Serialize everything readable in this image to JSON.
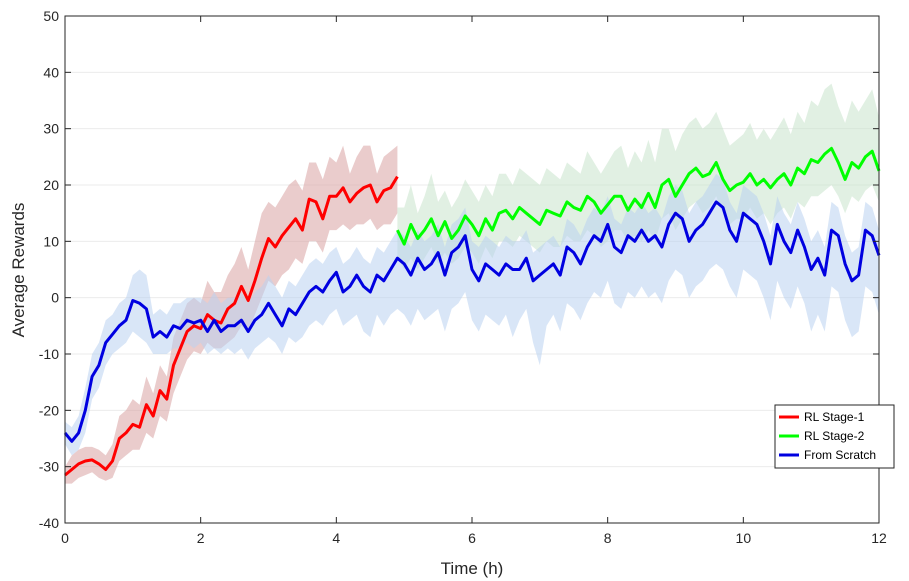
{
  "chart_data": {
    "type": "line",
    "xlabel": "Time (h)",
    "ylabel": "Average Rewards",
    "xlim": [
      0,
      12
    ],
    "ylim": [
      -40,
      50
    ],
    "x_ticks": [
      0,
      2,
      4,
      6,
      8,
      10,
      12
    ],
    "y_ticks": [
      -40,
      -30,
      -20,
      -10,
      0,
      10,
      20,
      30,
      40,
      50
    ],
    "grid": "horizontal",
    "legend_position": "bottom-right",
    "series": [
      {
        "name": "RL Stage-1",
        "color": "#ff0000",
        "band_color": "#d9a3a3",
        "x": [
          0,
          0.1,
          0.2,
          0.3,
          0.4,
          0.5,
          0.6,
          0.7,
          0.8,
          0.9,
          1.0,
          1.1,
          1.2,
          1.3,
          1.4,
          1.5,
          1.6,
          1.7,
          1.8,
          1.9,
          2.0,
          2.1,
          2.2,
          2.3,
          2.4,
          2.5,
          2.6,
          2.7,
          2.8,
          2.9,
          3.0,
          3.1,
          3.2,
          3.3,
          3.4,
          3.5,
          3.6,
          3.7,
          3.8,
          3.9,
          4.0,
          4.1,
          4.2,
          4.3,
          4.4,
          4.5,
          4.6,
          4.7,
          4.8,
          4.9
        ],
        "values": [
          -31.5,
          -30.5,
          -29.5,
          -29,
          -28.8,
          -29.5,
          -30.5,
          -29,
          -25,
          -24,
          -22.5,
          -23,
          -19,
          -21,
          -16.5,
          -18,
          -12,
          -9,
          -6,
          -5,
          -5.5,
          -3,
          -4,
          -4.5,
          -2,
          -1,
          2,
          -0.5,
          3,
          7,
          10.5,
          9,
          11,
          12.5,
          14,
          12,
          17.5,
          17,
          14,
          18,
          18,
          19.5,
          17,
          18.5,
          19.5,
          20,
          17,
          19,
          19.5,
          21.5
        ],
        "lower": [
          -33,
          -33,
          -32,
          -31.5,
          -31,
          -32,
          -32.5,
          -32,
          -29,
          -28,
          -27,
          -27,
          -24,
          -25,
          -21,
          -22,
          -17,
          -14,
          -11,
          -9.5,
          -10,
          -8,
          -9,
          -9,
          -8,
          -7,
          -5,
          -6,
          -3,
          0,
          3,
          2,
          4,
          5,
          7,
          6,
          10,
          10,
          8,
          12,
          12,
          13,
          12,
          13,
          13,
          14,
          12,
          13,
          13,
          15
        ],
        "upper": [
          -30,
          -28,
          -27,
          -26.5,
          -26.5,
          -27,
          -28,
          -26,
          -21,
          -20,
          -18,
          -19,
          -14,
          -17,
          -12,
          -14,
          -7,
          -4,
          -1,
          0,
          -1,
          3,
          1,
          1,
          4,
          6,
          9,
          5,
          10,
          15,
          17,
          16,
          18,
          20,
          21,
          19,
          24,
          24,
          21,
          25,
          24,
          27,
          22,
          25,
          27,
          27,
          22,
          25,
          26,
          27
        ]
      },
      {
        "name": "RL Stage-2",
        "color": "#00ff00",
        "band_color": "#c9e3cc",
        "x": [
          4.9,
          5.0,
          5.1,
          5.2,
          5.3,
          5.4,
          5.5,
          5.6,
          5.7,
          5.8,
          5.9,
          6.0,
          6.1,
          6.2,
          6.3,
          6.4,
          6.5,
          6.6,
          6.7,
          6.8,
          6.9,
          7.0,
          7.1,
          7.2,
          7.3,
          7.4,
          7.5,
          7.6,
          7.7,
          7.8,
          7.9,
          8.0,
          8.1,
          8.2,
          8.3,
          8.4,
          8.5,
          8.6,
          8.7,
          8.8,
          8.9,
          9.0,
          9.1,
          9.2,
          9.3,
          9.4,
          9.5,
          9.6,
          9.7,
          9.8,
          9.9,
          10.0,
          10.1,
          10.2,
          10.3,
          10.4,
          10.5,
          10.6,
          10.7,
          10.8,
          10.9,
          11.0,
          11.1,
          11.2,
          11.3,
          11.4,
          11.5,
          11.6,
          11.7,
          11.8,
          11.9,
          12.0
        ],
        "values": [
          12,
          9.5,
          13,
          10.5,
          12,
          14,
          11,
          13.5,
          10.5,
          12,
          14.5,
          13,
          11,
          14,
          12,
          15,
          15.5,
          14,
          16,
          15,
          14,
          13,
          15.5,
          15,
          14.5,
          17,
          16,
          15.5,
          18,
          17,
          15,
          16.5,
          18,
          18,
          15.5,
          17.5,
          16,
          18.5,
          16,
          20,
          21,
          18,
          20,
          22,
          23,
          21.5,
          22,
          24,
          21,
          19,
          20,
          20.5,
          22,
          20,
          21,
          19.5,
          21,
          22,
          20,
          23,
          22,
          24.5,
          24,
          25.5,
          26.5,
          24,
          21,
          24,
          23,
          25,
          26,
          22.5
        ],
        "lower": [
          7,
          5,
          7,
          5,
          7,
          9,
          6,
          8,
          6,
          7,
          9,
          8,
          6,
          9,
          7,
          10,
          10,
          9,
          11,
          10,
          9,
          8,
          10,
          9,
          9,
          11,
          10,
          10,
          12,
          11,
          9,
          10,
          12,
          12,
          10,
          11,
          10,
          12,
          10,
          14,
          15,
          12,
          14,
          16,
          17,
          15,
          16,
          18,
          15,
          13,
          14,
          14,
          16,
          14,
          15,
          13,
          15,
          16,
          14,
          17,
          16,
          18,
          18,
          19,
          20,
          18,
          15,
          18,
          17,
          19,
          20,
          17
        ],
        "upper": [
          16,
          16,
          20,
          15,
          18,
          22,
          17,
          19,
          16,
          18,
          21,
          19,
          17,
          20,
          18,
          22,
          22,
          20,
          23,
          22,
          21,
          20,
          23,
          22,
          21,
          24,
          23,
          22,
          26,
          24,
          22,
          24,
          26,
          27,
          23,
          26,
          24,
          28,
          24,
          30,
          30,
          26,
          29,
          31,
          32,
          30,
          31,
          33,
          30,
          27,
          28,
          29,
          31,
          28,
          30,
          28,
          30,
          32,
          29,
          33,
          31,
          35,
          34,
          37,
          38,
          34,
          31,
          35,
          33,
          35,
          37,
          32
        ]
      },
      {
        "name": "From Scratch",
        "color": "#0000e0",
        "band_color": "#b9d1f0",
        "x": [
          0,
          0.1,
          0.2,
          0.3,
          0.4,
          0.5,
          0.6,
          0.7,
          0.8,
          0.9,
          1.0,
          1.1,
          1.2,
          1.3,
          1.4,
          1.5,
          1.6,
          1.7,
          1.8,
          1.9,
          2.0,
          2.1,
          2.2,
          2.3,
          2.4,
          2.5,
          2.6,
          2.7,
          2.8,
          2.9,
          3.0,
          3.1,
          3.2,
          3.3,
          3.4,
          3.5,
          3.6,
          3.7,
          3.8,
          3.9,
          4.0,
          4.1,
          4.2,
          4.3,
          4.4,
          4.5,
          4.6,
          4.7,
          4.8,
          4.9,
          5.0,
          5.1,
          5.2,
          5.3,
          5.4,
          5.5,
          5.6,
          5.7,
          5.8,
          5.9,
          6.0,
          6.1,
          6.2,
          6.3,
          6.4,
          6.5,
          6.6,
          6.7,
          6.8,
          6.9,
          7.0,
          7.1,
          7.2,
          7.3,
          7.4,
          7.5,
          7.6,
          7.7,
          7.8,
          7.9,
          8.0,
          8.1,
          8.2,
          8.3,
          8.4,
          8.5,
          8.6,
          8.7,
          8.8,
          8.9,
          9.0,
          9.1,
          9.2,
          9.3,
          9.4,
          9.5,
          9.6,
          9.7,
          9.8,
          9.9,
          10.0,
          10.1,
          10.2,
          10.3,
          10.4,
          10.5,
          10.6,
          10.7,
          10.8,
          10.9,
          11.0,
          11.1,
          11.2,
          11.3,
          11.4,
          11.5,
          11.6,
          11.7,
          11.8,
          11.9,
          12.0
        ],
        "values": [
          -24,
          -25.5,
          -24,
          -20,
          -14,
          -12,
          -8,
          -6.5,
          -5,
          -4,
          -0.5,
          -1,
          -2,
          -7,
          -6,
          -7,
          -5,
          -5.5,
          -4,
          -4.5,
          -4,
          -6,
          -4,
          -6,
          -5,
          -5,
          -4,
          -6,
          -4,
          -3,
          -1,
          -3,
          -5,
          -2,
          -3,
          -1,
          1,
          2,
          1,
          3,
          4.5,
          1,
          2,
          4,
          2,
          1,
          4,
          3,
          5,
          7,
          6,
          4,
          7,
          5,
          6,
          8,
          4,
          8,
          9,
          11,
          5,
          3,
          6,
          5,
          4,
          6,
          5,
          5,
          7,
          3,
          4,
          5,
          6,
          4,
          9,
          8,
          6,
          9,
          11,
          10,
          13,
          9,
          8,
          11,
          10,
          12,
          10,
          11,
          9,
          13,
          15,
          14,
          10,
          12,
          13,
          15,
          17,
          16,
          12,
          10,
          15,
          14,
          13,
          10,
          6,
          13,
          10,
          8,
          12,
          9,
          5,
          7,
          4,
          12,
          11,
          6,
          3,
          4,
          12,
          11,
          7.5
        ],
        "lower": [
          -26,
          -28,
          -27,
          -24,
          -18,
          -16,
          -12,
          -10,
          -9,
          -8,
          -6,
          -7,
          -8,
          -10,
          -10,
          -10,
          -9,
          -9,
          -8,
          -9,
          -8,
          -10,
          -9,
          -10,
          -9,
          -10,
          -9,
          -11,
          -9,
          -8,
          -7,
          -8,
          -10,
          -7,
          -8,
          -7,
          -5,
          -4,
          -5,
          -3,
          -2,
          -5,
          -4,
          -3,
          -6,
          -7,
          -3,
          -5,
          -3,
          -2,
          -3,
          -5,
          -2,
          -4,
          -3,
          -2,
          -6,
          -2,
          -1,
          1,
          -4,
          -6,
          -3,
          -4,
          -5,
          -3,
          -7,
          -4,
          -2,
          -8,
          -12,
          -5,
          -3,
          -6,
          -1,
          -2,
          -4,
          -1,
          1,
          0,
          3,
          -1,
          -2,
          1,
          0,
          2,
          0,
          1,
          -1,
          3,
          5,
          4,
          0,
          2,
          3,
          5,
          6,
          5,
          2,
          0,
          5,
          4,
          3,
          0,
          -4,
          3,
          0,
          -2,
          2,
          -1,
          -6,
          -3,
          -6,
          2,
          1,
          -4,
          -7,
          -6,
          2,
          1,
          -3
        ],
        "upper": [
          -22,
          -23,
          -21,
          -16,
          -10,
          -8,
          -4,
          -3,
          -1,
          0,
          4,
          5,
          4,
          -3,
          -2,
          -3,
          -1,
          -1,
          0,
          0,
          0,
          -1,
          1,
          -1,
          0,
          0,
          1,
          -1,
          1,
          2,
          4,
          2,
          0,
          3,
          2,
          4,
          6,
          7,
          6,
          8,
          9,
          6,
          7,
          9,
          7,
          6,
          9,
          8,
          10,
          12,
          11,
          9,
          12,
          10,
          11,
          13,
          9,
          13,
          14,
          16,
          10,
          9,
          11,
          10,
          9,
          11,
          10,
          10,
          12,
          8,
          9,
          10,
          11,
          9,
          14,
          13,
          11,
          14,
          16,
          15,
          18,
          14,
          13,
          16,
          15,
          17,
          15,
          16,
          14,
          18,
          20,
          19,
          15,
          17,
          18,
          20,
          22,
          21,
          17,
          15,
          20,
          19,
          18,
          15,
          11,
          18,
          15,
          13,
          17,
          14,
          10,
          12,
          9,
          17,
          16,
          11,
          8,
          9,
          17,
          16,
          12
        ]
      }
    ]
  }
}
